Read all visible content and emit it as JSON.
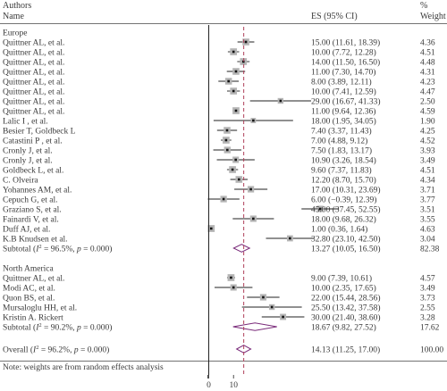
{
  "header": {
    "study_col": "Authors",
    "name_col": "Name",
    "es_col": "ES (95% CI)",
    "weight_col_line1": "%",
    "weight_col_line2": "Weight"
  },
  "footer_note": "Note: weights are from random effects analysis",
  "chart_data": {
    "type": "forest",
    "x_axis": {
      "ticks": [
        0,
        10
      ],
      "tick_labels": [
        "0",
        "10"
      ],
      "reference_line": 0,
      "overall_line": 14.13
    },
    "groups": [
      {
        "name": "Europe",
        "studies": [
          {
            "label": "Quittner AL, et al.",
            "es": 15.0,
            "lo": 11.61,
            "hi": 18.39,
            "ci_text": "15.00 (11.61, 18.39)",
            "weight": "4.36"
          },
          {
            "label": "Quittner AL, et al.",
            "es": 10.0,
            "lo": 7.72,
            "hi": 12.28,
            "ci_text": "10.00 (7.72, 12.28)",
            "weight": "4.51"
          },
          {
            "label": "Quittner AL, et al.",
            "es": 14.0,
            "lo": 11.5,
            "hi": 16.5,
            "ci_text": "14.00 (11.50, 16.50)",
            "weight": "4.48"
          },
          {
            "label": "Quittner AL, et al.",
            "es": 11.0,
            "lo": 7.3,
            "hi": 14.7,
            "ci_text": "11.00 (7.30, 14.70)",
            "weight": "4.31"
          },
          {
            "label": "Quittner AL, et al.",
            "es": 8.0,
            "lo": 3.89,
            "hi": 12.11,
            "ci_text": "8.00 (3.89, 12.11)",
            "weight": "4.23"
          },
          {
            "label": "Quittner AL, et al.",
            "es": 10.0,
            "lo": 7.41,
            "hi": 12.59,
            "ci_text": "10.00 (7.41, 12.59)",
            "weight": "4.47"
          },
          {
            "label": "Quittner AL, et al.",
            "es": 29.0,
            "lo": 16.67,
            "hi": 41.33,
            "ci_text": "29.00 (16.67, 41.33)",
            "weight": "2.50"
          },
          {
            "label": "Quittner AL, et al.",
            "es": 11.0,
            "lo": 9.64,
            "hi": 12.36,
            "ci_text": "11.00 (9.64, 12.36)",
            "weight": "4.59"
          },
          {
            "label": "Lalic I , et al.",
            "es": 18.0,
            "lo": 1.95,
            "hi": 34.05,
            "ci_text": "18.00 (1.95, 34.05)",
            "weight": "1.90"
          },
          {
            "label": "Besier T, Goldbeck L",
            "es": 7.4,
            "lo": 3.37,
            "hi": 11.43,
            "ci_text": "7.40 (3.37, 11.43)",
            "weight": "4.25"
          },
          {
            "label": "Catastini P , et al.",
            "es": 7.0,
            "lo": 4.88,
            "hi": 9.12,
            "ci_text": "7.00 (4.88, 9.12)",
            "weight": "4.52"
          },
          {
            "label": "Cronly J, et al.",
            "es": 7.5,
            "lo": 1.83,
            "hi": 13.17,
            "ci_text": "7.50 (1.83, 13.17)",
            "weight": "3.93"
          },
          {
            "label": "Cronly J, et al.",
            "es": 10.9,
            "lo": 3.26,
            "hi": 18.54,
            "ci_text": "10.90 (3.26, 18.54)",
            "weight": "3.49"
          },
          {
            "label": "Goldbeck L, et al.",
            "es": 9.6,
            "lo": 7.37,
            "hi": 11.83,
            "ci_text": "9.60 (7.37, 11.83)",
            "weight": "4.51"
          },
          {
            "label": "C. Olveira",
            "es": 12.2,
            "lo": 8.7,
            "hi": 15.7,
            "ci_text": "12.20 (8.70, 15.70)",
            "weight": "4.34"
          },
          {
            "label": "Yohannes AM, et al.",
            "es": 17.0,
            "lo": 10.31,
            "hi": 23.69,
            "ci_text": "17.00 (10.31, 23.69)",
            "weight": "3.71"
          },
          {
            "label": "Cepuch G, et al.",
            "es": 6.0,
            "lo": -0.39,
            "hi": 12.39,
            "ci_text": "6.00 (−0.39, 12.39)",
            "weight": "3.77"
          },
          {
            "label": "Graziano S, et al.",
            "es": 45.0,
            "lo": 37.45,
            "hi": 52.55,
            "ci_text": "45.00 (37.45, 52.55)",
            "weight": "3.51"
          },
          {
            "label": "Fainardi V, et al.",
            "es": 18.0,
            "lo": 9.68,
            "hi": 26.32,
            "ci_text": "18.00 (9.68, 26.32)",
            "weight": "3.55"
          },
          {
            "label": "Duff AJ, et al.",
            "es": 1.0,
            "lo": 0.36,
            "hi": 1.64,
            "ci_text": "1.00 (0.36, 1.64)",
            "weight": "4.63"
          },
          {
            "label": "K.B Knudsen et al.",
            "es": 32.8,
            "lo": 23.1,
            "hi": 42.5,
            "ci_text": "32.80 (23.10, 42.50)",
            "weight": "3.04"
          }
        ],
        "subtotal": {
          "label_prefix": "Subtotal (",
          "stat": "I",
          "sup": "2",
          "label_suffix": " = 96.5%, ",
          "p_italic": "p",
          "p_rest": " = 0.000)",
          "es": 13.27,
          "lo": 10.05,
          "hi": 16.5,
          "ci_text": "13.27 (10.05, 16.50)",
          "weight": "82.38"
        }
      },
      {
        "name": "North America",
        "studies": [
          {
            "label": "Quittner AL, et al.",
            "es": 9.0,
            "lo": 7.39,
            "hi": 10.61,
            "ci_text": "9.00 (7.39, 10.61)",
            "weight": "4.57"
          },
          {
            "label": "Modi AC, et al.",
            "es": 10.0,
            "lo": 2.35,
            "hi": 17.65,
            "ci_text": "10.00 (2.35, 17.65)",
            "weight": "3.49"
          },
          {
            "label": "Quon BS, et al.",
            "es": 22.0,
            "lo": 15.44,
            "hi": 28.56,
            "ci_text": "22.00 (15.44, 28.56)",
            "weight": "3.73"
          },
          {
            "label": "Mursaloglu HH, et al.",
            "es": 25.5,
            "lo": 13.42,
            "hi": 37.58,
            "ci_text": "25.50 (13.42, 37.58)",
            "weight": "2.55"
          },
          {
            "label": "Kristin A. Rickert",
            "es": 30.0,
            "lo": 21.4,
            "hi": 38.6,
            "ci_text": "30.00 (21.40, 38.60)",
            "weight": "3.28"
          }
        ],
        "subtotal": {
          "label_prefix": "Subtotal (",
          "stat": "I",
          "sup": "2",
          "label_suffix": " = 90.2%, ",
          "p_italic": "p",
          "p_rest": " = 0.000)",
          "es": 18.67,
          "lo": 9.82,
          "hi": 27.52,
          "ci_text": "18.67 (9.82, 27.52)",
          "weight": "17.62"
        }
      }
    ],
    "overall": {
      "label_prefix": "Overall (",
      "stat": "I",
      "sup": "2",
      "label_suffix": " = 96.2%, ",
      "p_italic": "p",
      "p_rest": " = 0.000)",
      "es": 14.13,
      "lo": 11.25,
      "hi": 17.0,
      "ci_text": "14.13 (11.25, 17.00)",
      "weight": "100.00"
    }
  }
}
